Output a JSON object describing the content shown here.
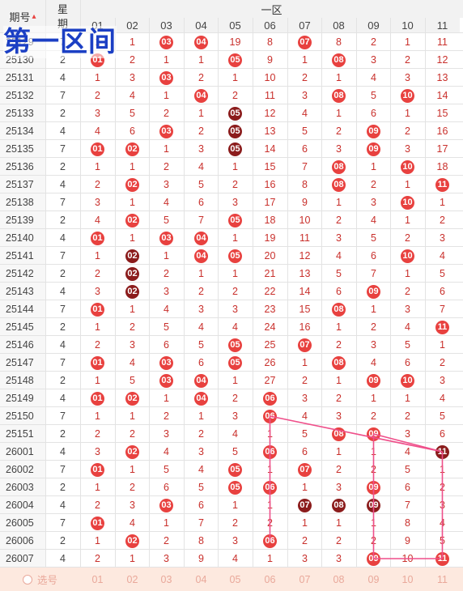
{
  "header": {
    "period_label": "期号",
    "week_label_top": "星",
    "week_label_bottom": "期",
    "zone_label": "一区",
    "columns": [
      "01",
      "02",
      "03",
      "04",
      "05",
      "06",
      "07",
      "08",
      "09",
      "10",
      "11"
    ]
  },
  "overlay_title": "第一区间",
  "rows": [
    {
      "period": "25129",
      "week": "7",
      "cells": [
        "1",
        "1",
        "03",
        "04",
        "19",
        "8",
        "07",
        "8",
        "2",
        "1",
        "11"
      ],
      "balls": [
        0,
        0,
        1,
        1,
        0,
        0,
        1,
        0,
        0,
        0,
        0
      ]
    },
    {
      "period": "25130",
      "week": "2",
      "cells": [
        "01",
        "2",
        "1",
        "1",
        "05",
        "9",
        "1",
        "08",
        "3",
        "2",
        "12"
      ],
      "balls": [
        1,
        0,
        0,
        0,
        1,
        0,
        0,
        1,
        0,
        0,
        0
      ]
    },
    {
      "period": "25131",
      "week": "4",
      "cells": [
        "1",
        "3",
        "03",
        "2",
        "1",
        "10",
        "2",
        "1",
        "4",
        "3",
        "13"
      ],
      "balls": [
        0,
        0,
        1,
        0,
        0,
        0,
        0,
        0,
        0,
        0,
        0
      ]
    },
    {
      "period": "25132",
      "week": "7",
      "cells": [
        "2",
        "4",
        "1",
        "04",
        "2",
        "11",
        "3",
        "08",
        "5",
        "10",
        "14"
      ],
      "balls": [
        0,
        0,
        0,
        1,
        0,
        0,
        0,
        1,
        0,
        1,
        0
      ]
    },
    {
      "period": "25133",
      "week": "2",
      "cells": [
        "3",
        "5",
        "2",
        "1",
        "05",
        "12",
        "4",
        "1",
        "6",
        "1",
        "15"
      ],
      "balls": [
        0,
        0,
        0,
        0,
        2,
        0,
        0,
        0,
        0,
        0,
        0
      ]
    },
    {
      "period": "25134",
      "week": "4",
      "cells": [
        "4",
        "6",
        "03",
        "2",
        "05",
        "13",
        "5",
        "2",
        "09",
        "2",
        "16"
      ],
      "balls": [
        0,
        0,
        1,
        0,
        2,
        0,
        0,
        0,
        1,
        0,
        0
      ]
    },
    {
      "period": "25135",
      "week": "7",
      "cells": [
        "01",
        "02",
        "1",
        "3",
        "05",
        "14",
        "6",
        "3",
        "09",
        "3",
        "17"
      ],
      "balls": [
        1,
        1,
        0,
        0,
        2,
        0,
        0,
        0,
        1,
        0,
        0
      ]
    },
    {
      "period": "25136",
      "week": "2",
      "cells": [
        "1",
        "1",
        "2",
        "4",
        "1",
        "15",
        "7",
        "08",
        "1",
        "10",
        "18"
      ],
      "balls": [
        0,
        0,
        0,
        0,
        0,
        0,
        0,
        1,
        0,
        1,
        0
      ]
    },
    {
      "period": "25137",
      "week": "4",
      "cells": [
        "2",
        "02",
        "3",
        "5",
        "2",
        "16",
        "8",
        "08",
        "2",
        "1",
        "11"
      ],
      "balls": [
        0,
        1,
        0,
        0,
        0,
        0,
        0,
        1,
        0,
        0,
        1
      ]
    },
    {
      "period": "25138",
      "week": "7",
      "cells": [
        "3",
        "1",
        "4",
        "6",
        "3",
        "17",
        "9",
        "1",
        "3",
        "10",
        "1"
      ],
      "balls": [
        0,
        0,
        0,
        0,
        0,
        0,
        0,
        0,
        0,
        1,
        0
      ]
    },
    {
      "period": "25139",
      "week": "2",
      "cells": [
        "4",
        "02",
        "5",
        "7",
        "05",
        "18",
        "10",
        "2",
        "4",
        "1",
        "2"
      ],
      "balls": [
        0,
        1,
        0,
        0,
        1,
        0,
        0,
        0,
        0,
        0,
        0
      ]
    },
    {
      "period": "25140",
      "week": "4",
      "cells": [
        "01",
        "1",
        "03",
        "04",
        "1",
        "19",
        "11",
        "3",
        "5",
        "2",
        "3"
      ],
      "balls": [
        1,
        0,
        1,
        1,
        0,
        0,
        0,
        0,
        0,
        0,
        0
      ]
    },
    {
      "period": "25141",
      "week": "7",
      "cells": [
        "1",
        "02",
        "1",
        "04",
        "05",
        "20",
        "12",
        "4",
        "6",
        "10",
        "4"
      ],
      "balls": [
        0,
        2,
        0,
        1,
        1,
        0,
        0,
        0,
        0,
        1,
        0
      ]
    },
    {
      "period": "25142",
      "week": "2",
      "cells": [
        "2",
        "02",
        "2",
        "1",
        "1",
        "21",
        "13",
        "5",
        "7",
        "1",
        "5"
      ],
      "balls": [
        0,
        2,
        0,
        0,
        0,
        0,
        0,
        0,
        0,
        0,
        0
      ]
    },
    {
      "period": "25143",
      "week": "4",
      "cells": [
        "3",
        "02",
        "3",
        "2",
        "2",
        "22",
        "14",
        "6",
        "09",
        "2",
        "6"
      ],
      "balls": [
        0,
        2,
        0,
        0,
        0,
        0,
        0,
        0,
        1,
        0,
        0
      ]
    },
    {
      "period": "25144",
      "week": "7",
      "cells": [
        "01",
        "1",
        "4",
        "3",
        "3",
        "23",
        "15",
        "08",
        "1",
        "3",
        "7"
      ],
      "balls": [
        1,
        0,
        0,
        0,
        0,
        0,
        0,
        1,
        0,
        0,
        0
      ]
    },
    {
      "period": "25145",
      "week": "2",
      "cells": [
        "1",
        "2",
        "5",
        "4",
        "4",
        "24",
        "16",
        "1",
        "2",
        "4",
        "11"
      ],
      "balls": [
        0,
        0,
        0,
        0,
        0,
        0,
        0,
        0,
        0,
        0,
        1
      ]
    },
    {
      "period": "25146",
      "week": "4",
      "cells": [
        "2",
        "3",
        "6",
        "5",
        "05",
        "25",
        "07",
        "2",
        "3",
        "5",
        "1"
      ],
      "balls": [
        0,
        0,
        0,
        0,
        1,
        0,
        1,
        0,
        0,
        0,
        0
      ]
    },
    {
      "period": "25147",
      "week": "7",
      "cells": [
        "01",
        "4",
        "03",
        "6",
        "05",
        "26",
        "1",
        "08",
        "4",
        "6",
        "2"
      ],
      "balls": [
        1,
        0,
        1,
        0,
        1,
        0,
        0,
        1,
        0,
        0,
        0
      ]
    },
    {
      "period": "25148",
      "week": "2",
      "cells": [
        "1",
        "5",
        "03",
        "04",
        "1",
        "27",
        "2",
        "1",
        "09",
        "10",
        "3"
      ],
      "balls": [
        0,
        0,
        1,
        1,
        0,
        0,
        0,
        0,
        1,
        1,
        0
      ]
    },
    {
      "period": "25149",
      "week": "4",
      "cells": [
        "01",
        "02",
        "1",
        "04",
        "2",
        "06",
        "3",
        "2",
        "1",
        "1",
        "4"
      ],
      "balls": [
        1,
        1,
        0,
        1,
        0,
        1,
        0,
        0,
        0,
        0,
        0
      ]
    },
    {
      "period": "25150",
      "week": "7",
      "cells": [
        "1",
        "1",
        "2",
        "1",
        "3",
        "06",
        "4",
        "3",
        "2",
        "2",
        "5"
      ],
      "balls": [
        0,
        0,
        0,
        0,
        0,
        1,
        0,
        0,
        0,
        0,
        0
      ]
    },
    {
      "period": "25151",
      "week": "2",
      "cells": [
        "2",
        "2",
        "3",
        "2",
        "4",
        "1",
        "5",
        "08",
        "09",
        "3",
        "6"
      ],
      "balls": [
        0,
        0,
        0,
        0,
        0,
        0,
        0,
        1,
        1,
        0,
        0
      ]
    },
    {
      "period": "26001",
      "week": "4",
      "cells": [
        "3",
        "02",
        "4",
        "3",
        "5",
        "06",
        "6",
        "1",
        "1",
        "4",
        "11"
      ],
      "balls": [
        0,
        1,
        0,
        0,
        0,
        1,
        0,
        0,
        0,
        0,
        2
      ]
    },
    {
      "period": "26002",
      "week": "7",
      "cells": [
        "01",
        "1",
        "5",
        "4",
        "05",
        "1",
        "07",
        "2",
        "2",
        "5",
        "1"
      ],
      "balls": [
        1,
        0,
        0,
        0,
        1,
        0,
        1,
        0,
        0,
        0,
        0
      ]
    },
    {
      "period": "26003",
      "week": "2",
      "cells": [
        "1",
        "2",
        "6",
        "5",
        "05",
        "06",
        "1",
        "3",
        "09",
        "6",
        "2"
      ],
      "balls": [
        0,
        0,
        0,
        0,
        1,
        1,
        0,
        0,
        1,
        0,
        0
      ]
    },
    {
      "period": "26004",
      "week": "4",
      "cells": [
        "2",
        "3",
        "03",
        "6",
        "1",
        "1",
        "07",
        "08",
        "09",
        "7",
        "3"
      ],
      "balls": [
        0,
        0,
        1,
        0,
        0,
        0,
        2,
        2,
        2,
        0,
        0
      ]
    },
    {
      "period": "26005",
      "week": "7",
      "cells": [
        "01",
        "4",
        "1",
        "7",
        "2",
        "2",
        "1",
        "1",
        "1",
        "8",
        "4"
      ],
      "balls": [
        1,
        0,
        0,
        0,
        0,
        0,
        0,
        0,
        0,
        0,
        0
      ]
    },
    {
      "period": "26006",
      "week": "2",
      "cells": [
        "1",
        "02",
        "2",
        "8",
        "3",
        "06",
        "2",
        "2",
        "2",
        "9",
        "5"
      ],
      "balls": [
        0,
        1,
        0,
        0,
        0,
        1,
        0,
        0,
        0,
        0,
        0
      ]
    },
    {
      "period": "26007",
      "week": "4",
      "cells": [
        "2",
        "1",
        "3",
        "9",
        "4",
        "1",
        "3",
        "3",
        "09",
        "10",
        "11"
      ],
      "balls": [
        0,
        0,
        0,
        0,
        0,
        0,
        0,
        0,
        1,
        0,
        1
      ]
    }
  ],
  "footer": {
    "select_label": "选号",
    "columns": [
      "01",
      "02",
      "03",
      "04",
      "05",
      "06",
      "07",
      "08",
      "09",
      "10",
      "11"
    ]
  },
  "colors": {
    "ball_red": "#e8413f",
    "ball_dark": "#8b1c1c",
    "line_pink": "#ef4f8a",
    "title_blue": "#1b3fc4"
  }
}
